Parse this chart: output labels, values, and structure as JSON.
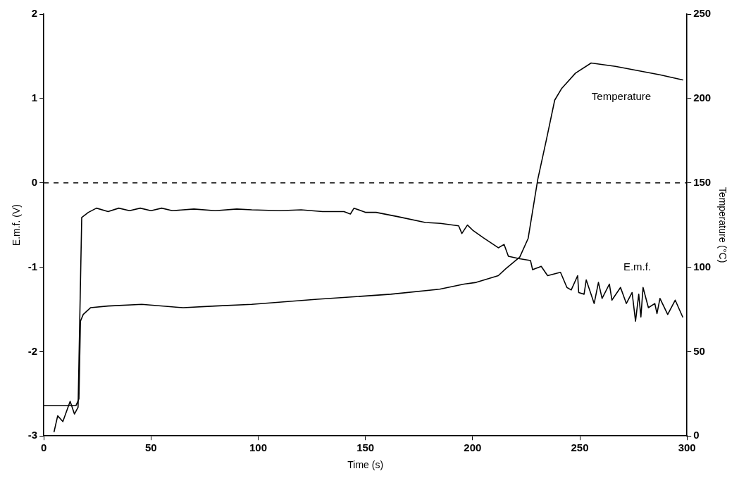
{
  "chart_data": {
    "type": "line",
    "xlabel": "Time (s)",
    "ylabel": "E.m.f. (V)",
    "y2label": "Temperature (°C)",
    "xlim": [
      0,
      300
    ],
    "xticks": [
      0,
      50,
      100,
      150,
      200,
      250,
      300
    ],
    "ylim": [
      -3,
      2
    ],
    "yticks": [
      -3,
      -2,
      -1,
      0,
      1,
      2
    ],
    "y2lim": [
      0,
      250
    ],
    "y2ticks": [
      0,
      50,
      100,
      150,
      200,
      250
    ],
    "grid": false,
    "legend": false,
    "marker": "none",
    "line_style": "solid",
    "ref_lines": [
      {
        "axis": "y",
        "value": 0,
        "line_style": "dashed",
        "color": "#000000"
      }
    ],
    "series": [
      {
        "name": "E.m.f.",
        "color": "#000000",
        "x": [
          4.8,
          6.5,
          8.9,
          12.3,
          14.3,
          16,
          17.7,
          20.8,
          24.6,
          30,
          35,
          40,
          45,
          50,
          55,
          60,
          70,
          80,
          90,
          97,
          110,
          120,
          130,
          140,
          143,
          144.7,
          150,
          155,
          165,
          178,
          185,
          193.5,
          195,
          197.6,
          200,
          205,
          212,
          214.7,
          216.7,
          222,
          227,
          228,
          232,
          235,
          241,
          244,
          246,
          249,
          249.5,
          252,
          253,
          256.7,
          258.7,
          260.4,
          263.8,
          265,
          269,
          271.7,
          274.4,
          276,
          277.5,
          278.5,
          279.5,
          282,
          285,
          286,
          287.4,
          291,
          294.5,
          298
        ],
        "values": [
          -2.95,
          -2.76,
          -2.83,
          -2.59,
          -2.74,
          -2.66,
          -0.41,
          -0.35,
          -0.3,
          -0.34,
          -0.3,
          -0.33,
          -0.3,
          -0.33,
          -0.3,
          -0.33,
          -0.31,
          -0.33,
          -0.31,
          -0.32,
          -0.33,
          -0.32,
          -0.34,
          -0.34,
          -0.37,
          -0.3,
          -0.35,
          -0.35,
          -0.4,
          -0.47,
          -0.48,
          -0.51,
          -0.6,
          -0.5,
          -0.56,
          -0.65,
          -0.77,
          -0.73,
          -0.87,
          -0.9,
          -0.92,
          -1.03,
          -0.99,
          -1.1,
          -1.06,
          -1.24,
          -1.27,
          -1.1,
          -1.3,
          -1.32,
          -1.15,
          -1.43,
          -1.18,
          -1.37,
          -1.2,
          -1.39,
          -1.24,
          -1.43,
          -1.3,
          -1.64,
          -1.32,
          -1.59,
          -1.24,
          -1.48,
          -1.43,
          -1.55,
          -1.37,
          -1.56,
          -1.39,
          -1.59
        ]
      },
      {
        "name": "Temperature",
        "color": "#000000",
        "axis": "y2",
        "x": [
          0,
          15,
          16.4,
          17.1,
          18.4,
          21.8,
          30,
          45.7,
          65,
          80,
          97,
          127.6,
          161.8,
          184.6,
          196,
          201.7,
          212,
          215.4,
          222,
          225.9,
          230.4,
          234.5,
          238.3,
          241.6,
          248,
          255.3,
          266.6,
          287.4,
          298
        ],
        "values": [
          18,
          18,
          22,
          68,
          72,
          76,
          77,
          78,
          76,
          77,
          78,
          81,
          84,
          87,
          90,
          91,
          95,
          99,
          106,
          117,
          152,
          176,
          199,
          206,
          215,
          221,
          219,
          214,
          211
        ]
      }
    ]
  }
}
